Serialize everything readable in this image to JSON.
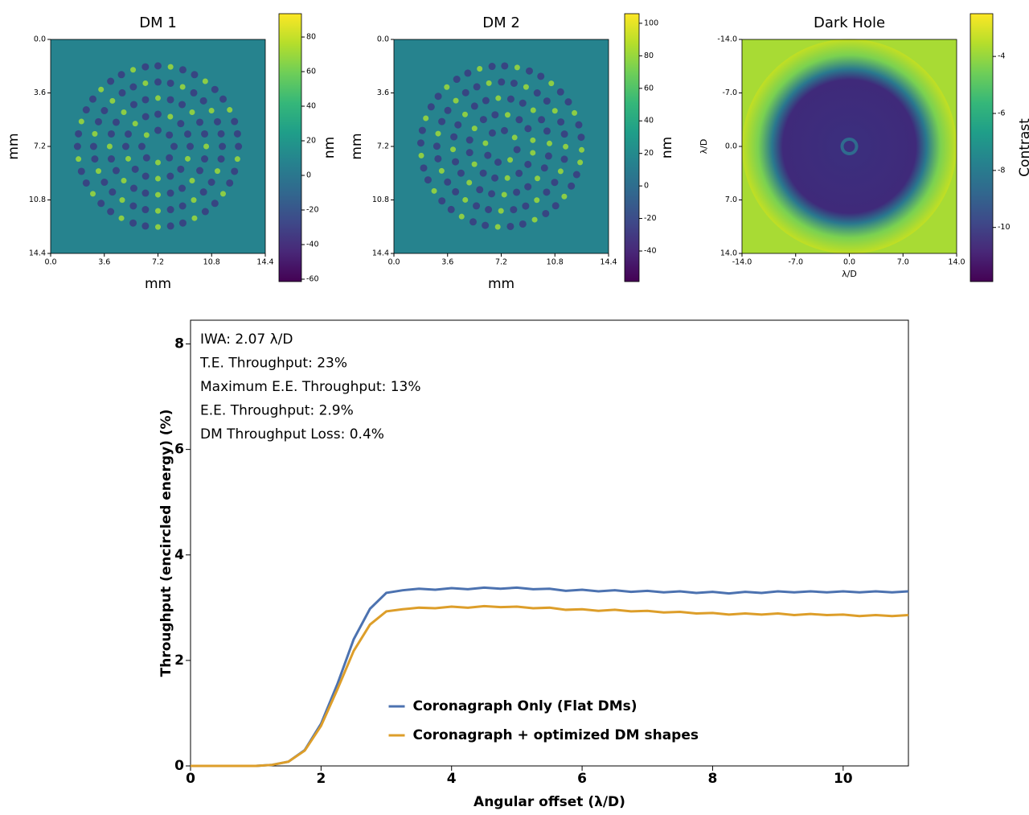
{
  "chart_data": [
    {
      "type": "image",
      "title": "DM 1",
      "xlabel": "mm",
      "ylabel": "mm",
      "xlim": [
        0,
        14.4
      ],
      "ylim": [
        14.4,
        0
      ],
      "xticks": [
        {
          "value": 0,
          "label": "0.0"
        },
        3.6,
        7.2,
        10.8,
        14.4
      ],
      "yticks": [
        {
          "value": 0,
          "label": "0.0"
        },
        3.6,
        7.2,
        10.8,
        14.4
      ],
      "colorbar": {
        "label": "nm",
        "colormap": "viridis",
        "lim": [
          -61.4,
          93.5
        ],
        "ticks": [
          -60,
          -40,
          -20,
          0,
          20,
          40,
          60,
          80
        ]
      }
    },
    {
      "type": "image",
      "title": "DM 2",
      "xlabel": "mm",
      "ylabel": "mm",
      "xlim": [
        0,
        14.4
      ],
      "ylim": [
        14.4,
        0
      ],
      "xticks": [
        {
          "value": 0,
          "label": "0.0"
        },
        3.6,
        7.2,
        10.8,
        14.4
      ],
      "yticks": [
        {
          "value": 0,
          "label": "0.0"
        },
        3.6,
        7.2,
        10.8,
        14.4
      ],
      "colorbar": {
        "label": "nm",
        "colormap": "viridis",
        "lim": [
          -58.8,
          105.9
        ],
        "ticks": [
          -40,
          -20,
          0,
          20,
          40,
          60,
          80,
          100
        ]
      }
    },
    {
      "type": "image",
      "title": "Dark Hole",
      "xlabel": "λ/D",
      "ylabel": "λ/D",
      "xlim": [
        -14,
        14
      ],
      "ylim": [
        14,
        -14
      ],
      "xticks": [
        {
          "value": -14,
          "label": "-14.0"
        },
        {
          "value": -7,
          "label": "-7.0"
        },
        {
          "value": 0,
          "label": "0.0"
        },
        {
          "value": 7,
          "label": "7.0"
        },
        {
          "value": 14,
          "label": "14.0"
        }
      ],
      "yticks": [
        {
          "value": -14,
          "label": "-14.0"
        },
        {
          "value": -7,
          "label": "-7.0"
        },
        {
          "value": 0,
          "label": "0.0"
        },
        {
          "value": 7,
          "label": "7.0"
        },
        {
          "value": 14,
          "label": "14.0"
        }
      ],
      "colorbar": {
        "label": "Contrast",
        "colormap": "viridis",
        "lim": [
          -11.9,
          -2.5
        ],
        "ticks": [
          -10,
          -8,
          -6,
          -4
        ]
      }
    },
    {
      "type": "line",
      "xlabel": "Angular offset (λ/D)",
      "ylabel": "Throughput (encircled energy) (%)",
      "xlim": [
        0,
        11
      ],
      "ylim": [
        0,
        8.45
      ],
      "xticks": [
        0,
        2,
        4,
        6,
        8,
        10
      ],
      "yticks": [
        0,
        2,
        4,
        6,
        8
      ],
      "legend": "lower center",
      "annotations": [
        "IWA: 2.07 λ/D",
        "T.E. Throughput: 23%",
        "Maximum E.E. Throughput: 13%",
        "E.E. Throughput: 2.9%",
        "DM Throughput Loss: 0.4%"
      ],
      "x": [
        0,
        0.25,
        0.5,
        0.75,
        1,
        1.25,
        1.5,
        1.75,
        2,
        2.25,
        2.5,
        2.75,
        3,
        3.25,
        3.5,
        3.75,
        4,
        4.25,
        4.5,
        4.75,
        5,
        5.25,
        5.5,
        5.75,
        6,
        6.25,
        6.5,
        6.75,
        7,
        7.25,
        7.5,
        7.75,
        8,
        8.25,
        8.5,
        8.75,
        9,
        9.25,
        9.5,
        9.75,
        10,
        10.25,
        10.5,
        10.75,
        11
      ],
      "series": [
        {
          "name": "Coronagraph Only (Flat DMs)",
          "color": "#4c72b0",
          "values": [
            0,
            0,
            0,
            0,
            0,
            0.02,
            0.08,
            0.3,
            0.8,
            1.55,
            2.4,
            2.98,
            3.28,
            3.33,
            3.36,
            3.34,
            3.37,
            3.35,
            3.38,
            3.36,
            3.38,
            3.35,
            3.36,
            3.32,
            3.34,
            3.31,
            3.33,
            3.3,
            3.32,
            3.29,
            3.31,
            3.28,
            3.3,
            3.27,
            3.3,
            3.28,
            3.31,
            3.29,
            3.31,
            3.29,
            3.31,
            3.29,
            3.31,
            3.29,
            3.31
          ]
        },
        {
          "name": "Coronagraph + optimized DM shapes",
          "color": "#dd9e2a",
          "values": [
            0,
            0,
            0,
            0,
            0,
            0.02,
            0.08,
            0.29,
            0.76,
            1.45,
            2.18,
            2.68,
            2.93,
            2.97,
            3.0,
            2.99,
            3.02,
            3.0,
            3.03,
            3.01,
            3.02,
            2.99,
            3.0,
            2.96,
            2.97,
            2.94,
            2.96,
            2.93,
            2.94,
            2.91,
            2.92,
            2.89,
            2.9,
            2.87,
            2.89,
            2.87,
            2.89,
            2.86,
            2.88,
            2.86,
            2.87,
            2.84,
            2.86,
            2.84,
            2.86
          ]
        }
      ]
    }
  ]
}
